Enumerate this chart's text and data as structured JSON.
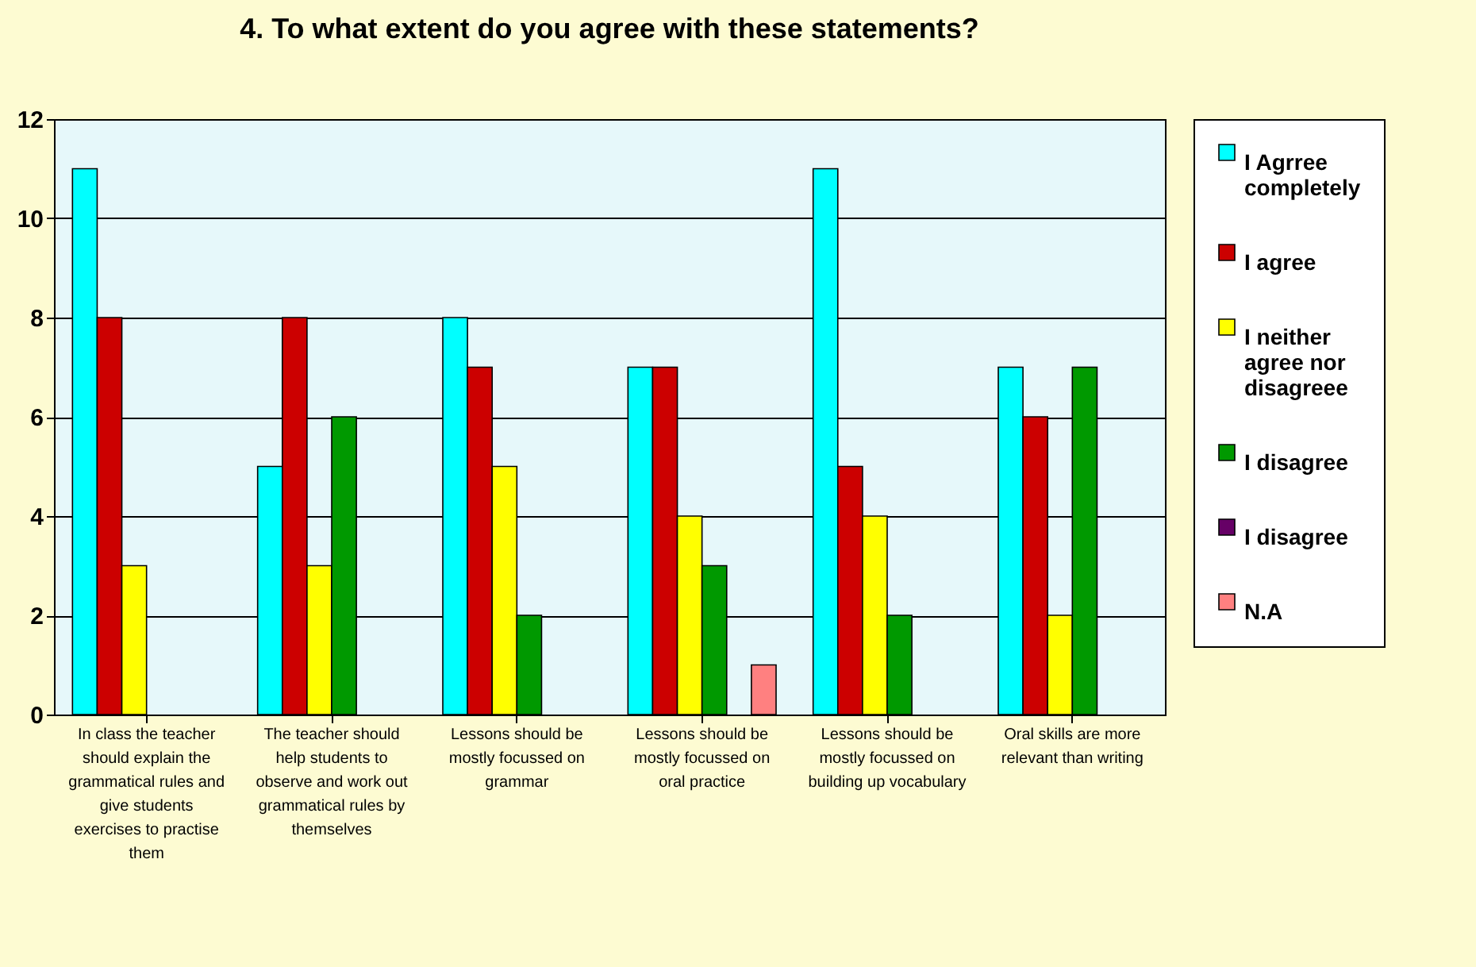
{
  "chart_data": {
    "type": "bar",
    "title": "4. To what extent do you agree with these statements?",
    "categories": [
      "In class the teacher should explain the grammatical rules and give students exercises to practise them",
      "The teacher should help students to observe and work out grammatical rules by themselves",
      "Lessons should be mostly focussed on grammar",
      "Lessons should be mostly focussed on oral practice",
      "Lessons should be mostly focussed on building up vocabulary",
      "Oral skills are more relevant than writing"
    ],
    "series": [
      {
        "name": "I Agrree completely",
        "color": "#00ffff",
        "values": [
          11,
          5,
          8,
          7,
          11,
          7
        ]
      },
      {
        "name": "I agree",
        "color": "#cc0000",
        "values": [
          8,
          8,
          7,
          7,
          5,
          6
        ]
      },
      {
        "name": "I neither agree nor disagreee",
        "color": "#ffff00",
        "values": [
          3,
          3,
          5,
          4,
          4,
          2
        ]
      },
      {
        "name": "I disagree",
        "color": "#009900",
        "values": [
          null,
          6,
          2,
          3,
          2,
          7
        ]
      },
      {
        "name": "I disagree",
        "color": "#660066",
        "values": [
          null,
          null,
          null,
          null,
          null,
          null
        ]
      },
      {
        "name": "N.A",
        "color": "#ff8080",
        "values": [
          null,
          null,
          null,
          1,
          null,
          null
        ]
      }
    ],
    "ylim": [
      0,
      12
    ],
    "yticks": [
      0,
      2,
      4,
      6,
      8,
      10,
      12
    ],
    "grid": "y",
    "legend": "right"
  }
}
